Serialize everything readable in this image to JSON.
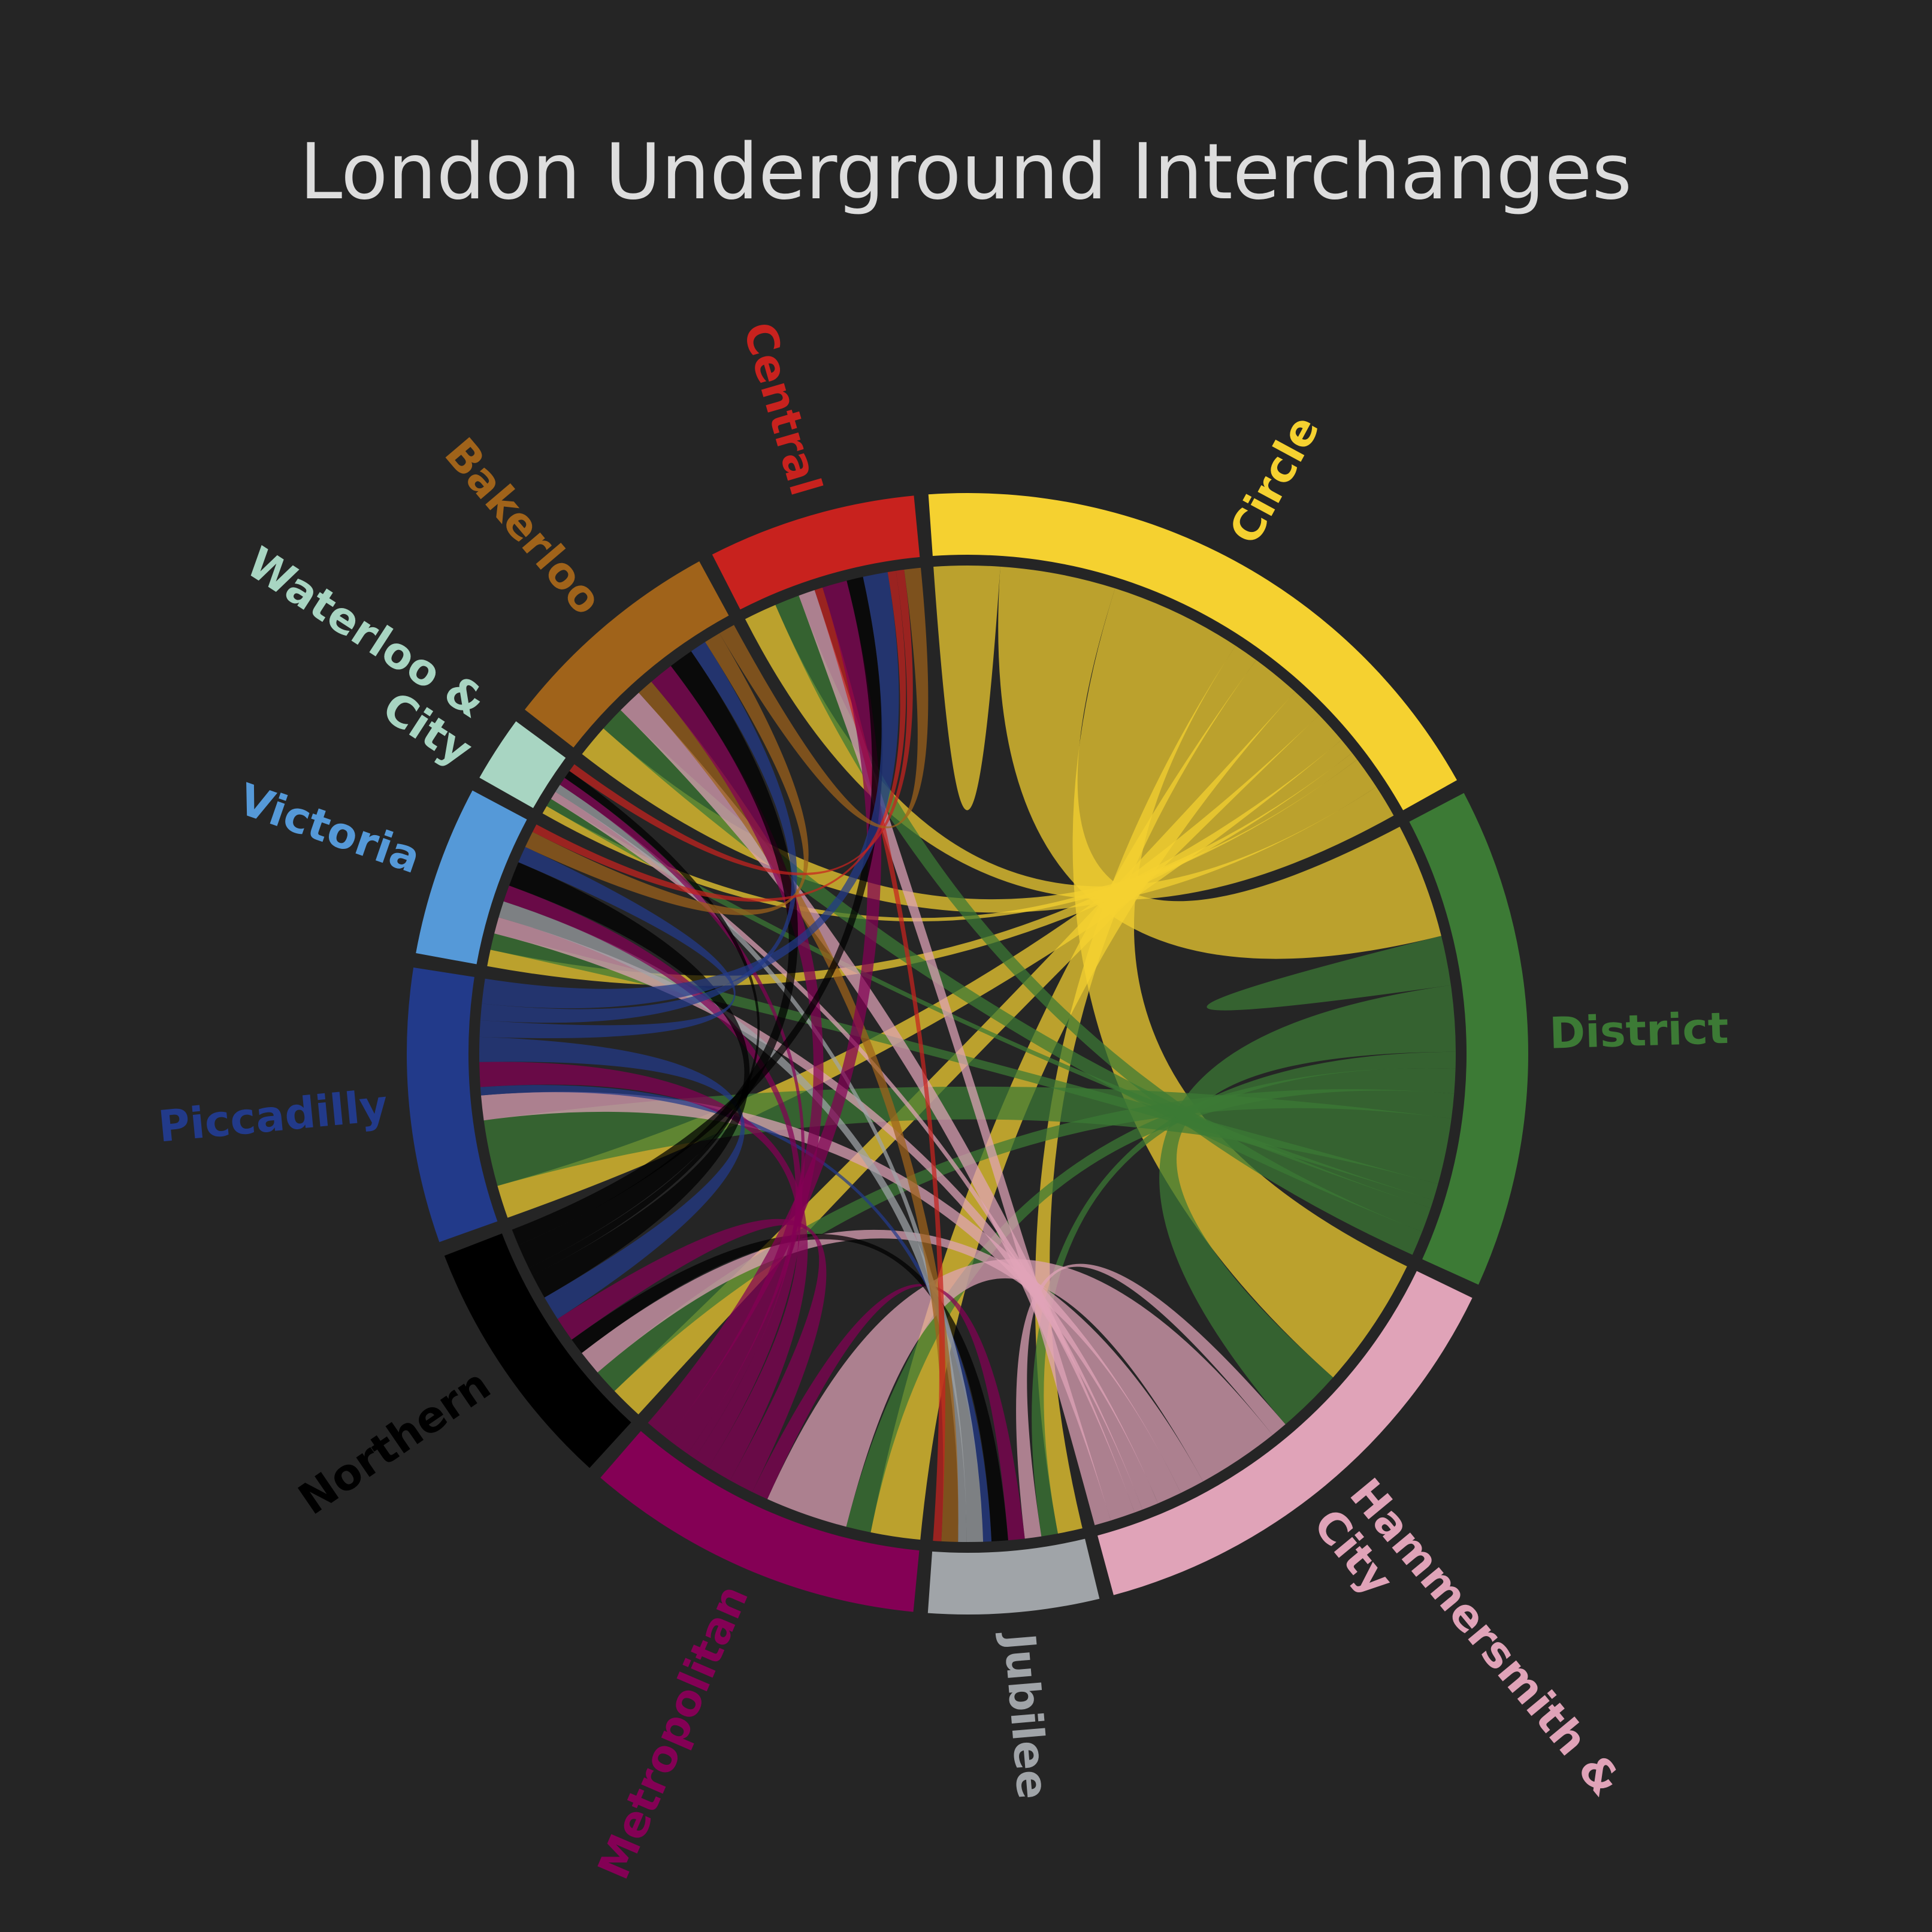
{
  "chart_data": {
    "type": "chord",
    "title": "London Underground Interchanges",
    "categories": [
      "Circle",
      "District",
      "Hammersmith & City",
      "Jubilee",
      "Metropolitan",
      "Northern",
      "Piccadilly",
      "Victoria",
      "Waterloo & City",
      "Bakerloo",
      "Central"
    ],
    "colors": [
      "#f5d130",
      "#3c7a35",
      "#e0a3b8",
      "#a0a4a8",
      "#840055",
      "#000000",
      "#223a8a",
      "#5599d8",
      "#a8d5c2",
      "#a0631a",
      "#c8221e"
    ],
    "matrix": [
      [
        8,
        14,
        16,
        3,
        6,
        4,
        4,
        2,
        1,
        4,
        4
      ],
      [
        14,
        6,
        8,
        2,
        3,
        3,
        8,
        2,
        1,
        3,
        3
      ],
      [
        16,
        8,
        0,
        2,
        10,
        3,
        3,
        2,
        1,
        3,
        2
      ],
      [
        3,
        2,
        2,
        0,
        2,
        2,
        1,
        2,
        1,
        2,
        1
      ],
      [
        6,
        3,
        10,
        2,
        0,
        3,
        3,
        2,
        1,
        3,
        3
      ],
      [
        4,
        3,
        3,
        2,
        3,
        0,
        3,
        3,
        1,
        3,
        2
      ],
      [
        4,
        8,
        3,
        1,
        3,
        3,
        0,
        2,
        0,
        2,
        3
      ],
      [
        2,
        2,
        2,
        2,
        2,
        3,
        2,
        0,
        0,
        2,
        1
      ],
      [
        1,
        1,
        1,
        1,
        1,
        1,
        0,
        0,
        0,
        0,
        1
      ],
      [
        4,
        3,
        3,
        2,
        3,
        3,
        2,
        2,
        0,
        0,
        2
      ],
      [
        4,
        3,
        2,
        1,
        3,
        2,
        3,
        1,
        1,
        2,
        0
      ]
    ]
  }
}
